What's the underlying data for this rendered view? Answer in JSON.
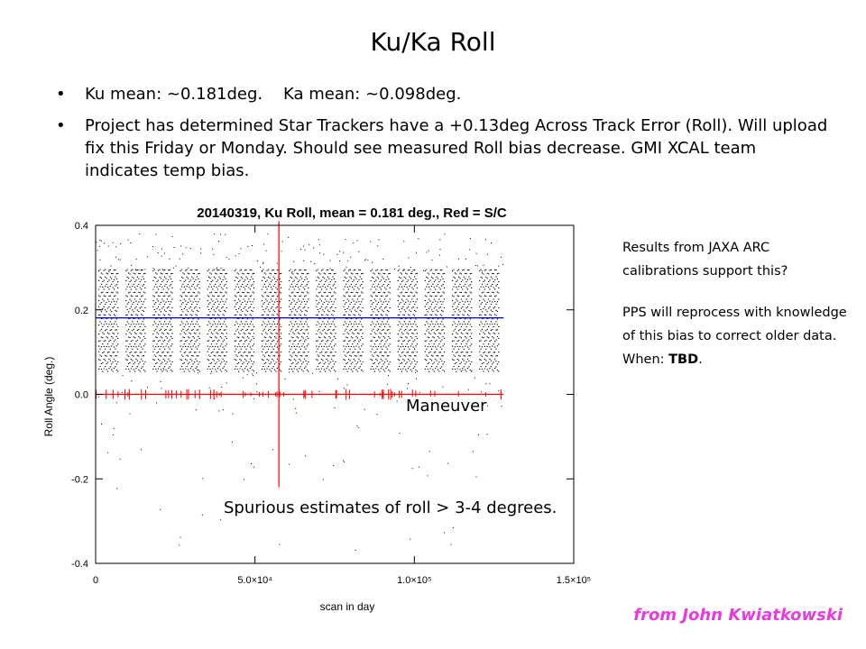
{
  "slide": {
    "title": "Ku/Ka Roll",
    "bullets": [
      {
        "marker": "•",
        "text": "Ku mean: ~0.181deg.    Ka mean: ~0.098deg."
      },
      {
        "marker": "•",
        "text": "Project has determined Star Trackers have a +0.13deg Across Track Error (Roll). Will upload fix this Friday or Monday.  Should see measured Roll bias decrease. GMI XCAL team indicates temp bias."
      }
    ],
    "side_note": {
      "p1": "Results from JAXA ARC calibrations support this?",
      "p2_text": "PPS will reprocess with knowledge of this bias to correct older data. When: ",
      "p2_bold": "TBD",
      "p2_end": "."
    },
    "credit": "from John Kwiatkowski",
    "annotations": {
      "maneuver": "Maneuver",
      "spurious": "Spurious estimates of roll > 3-4 degrees."
    }
  },
  "chart_data": {
    "type": "scatter",
    "title": "20140319, Ku Roll, mean = 0.181 deg., Red = S/C",
    "xlabel": "scan in day",
    "ylabel": "Roll Angle (deg.)",
    "xlim": [
      0,
      150000
    ],
    "ylim": [
      -0.4,
      0.4
    ],
    "x_ticks": [
      {
        "value": 0,
        "label": "0"
      },
      {
        "value": 50000,
        "label": "5.0×10⁴"
      },
      {
        "value": 100000,
        "label": "1.0×10⁵"
      },
      {
        "value": 150000,
        "label": "1.5×10⁵"
      }
    ],
    "y_ticks": [
      {
        "value": -0.4,
        "label": "-0.4"
      },
      {
        "value": -0.2,
        "label": "-0.2"
      },
      {
        "value": 0.0,
        "label": "0.0"
      },
      {
        "value": 0.2,
        "label": "0.2"
      },
      {
        "value": 0.4,
        "label": "0.4"
      }
    ],
    "series": [
      {
        "name": "Ku Roll",
        "color": "#000000",
        "x_range": [
          0,
          128000
        ],
        "band": [
          0.06,
          0.29
        ],
        "orbit_count": 15
      },
      {
        "name": "S/C",
        "color": "#ff0000",
        "values": 0.0,
        "maneuver_x": 57500,
        "maneuver_range": [
          -0.22,
          0.41
        ]
      },
      {
        "name": "mean",
        "color": "#0000cc",
        "values": 0.181,
        "x_range": [
          0,
          128000
        ]
      }
    ],
    "grid": false
  }
}
